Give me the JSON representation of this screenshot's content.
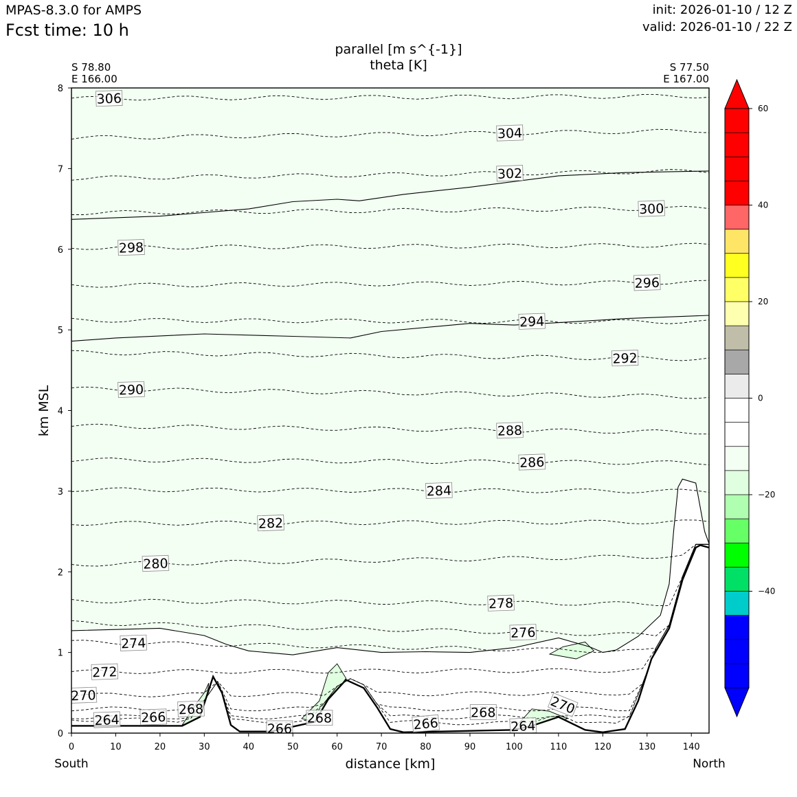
{
  "header": {
    "model": "MPAS-8.3.0 for AMPS",
    "forecast_time": "Fcst time:   10 h",
    "init": "init: 2026-01-10 / 12 Z",
    "valid": "valid: 2026-01-10 / 22 Z"
  },
  "chart_data": {
    "type": "cross-section contour",
    "title_lines": [
      "parallel [m s^{-1}]",
      "theta [K]"
    ],
    "xlabel": "distance [km]",
    "ylabel": "km MSL",
    "xlim": [
      0,
      144
    ],
    "ylim": [
      0,
      8
    ],
    "x_ticks": [
      0,
      10,
      20,
      30,
      40,
      50,
      60,
      70,
      80,
      90,
      100,
      110,
      120,
      130,
      140
    ],
    "y_ticks": [
      0,
      1,
      2,
      3,
      4,
      5,
      6,
      7,
      8
    ],
    "start_point": {
      "lat": "S 78.80",
      "lon": "E 166.00",
      "label": "South"
    },
    "end_point": {
      "lat": "S 77.50",
      "lon": "E 167.00",
      "label": "North"
    },
    "colorbar": {
      "levels": [
        -60,
        -55,
        -50,
        -45,
        -40,
        -35,
        -30,
        -25,
        -20,
        -15,
        -10,
        -5,
        0,
        5,
        10,
        15,
        20,
        25,
        30,
        35,
        40,
        45,
        50,
        55,
        60
      ],
      "colors": [
        "#0000ff",
        "#0000ff",
        "#0000ff",
        "#00cccc",
        "#00e066",
        "#00ff00",
        "#66ff66",
        "#b0ffb0",
        "#e0ffe0",
        "#f3fff3",
        "#ffffff",
        "#ffffff",
        "#ebebeb",
        "#a8a8a8",
        "#c0bea8",
        "#ffffb0",
        "#ffff66",
        "#ffff20",
        "#ffe566",
        "#ff6666",
        "#ff0000",
        "#ff0000"
      ],
      "extend_low_color": "#0000ff",
      "extend_high_color": "#ff0000",
      "tick_labels": [
        "60",
        "40",
        "20",
        "0",
        "−20",
        "−40"
      ],
      "tick_values": [
        60,
        40,
        20,
        0,
        -20,
        -40
      ]
    },
    "wind_bands": [
      {
        "name": "-15 to -10",
        "color": "#b0ffb0",
        "lower_boundary": [
          [
            0,
            6.37
          ],
          [
            20,
            6.41
          ],
          [
            40,
            6.5
          ],
          [
            50,
            6.59
          ],
          [
            60,
            6.62
          ],
          [
            65,
            6.6
          ],
          [
            75,
            6.68
          ],
          [
            90,
            6.77
          ],
          [
            110,
            6.91
          ],
          [
            125,
            6.95
          ],
          [
            144,
            6.97
          ]
        ]
      },
      {
        "name": "-10 to -5",
        "color": "#e0ffe0",
        "lower_boundary": [
          [
            0,
            4.86
          ],
          [
            10,
            4.9
          ],
          [
            30,
            4.95
          ],
          [
            50,
            4.92
          ],
          [
            63,
            4.9
          ],
          [
            70,
            4.98
          ],
          [
            90,
            5.08
          ],
          [
            100,
            5.06
          ],
          [
            110,
            5.09
          ],
          [
            125,
            5.14
          ],
          [
            144,
            5.18
          ]
        ]
      },
      {
        "name": "-5 to 0",
        "color": "#f3fff3",
        "lower_boundary": [
          [
            0,
            1.27
          ],
          [
            20,
            1.3
          ],
          [
            30,
            1.21
          ],
          [
            35,
            1.1
          ],
          [
            40,
            1.02
          ],
          [
            50,
            0.97
          ],
          [
            60,
            1.06
          ],
          [
            70,
            1.0
          ],
          [
            80,
            1.01
          ],
          [
            90,
            1.0
          ],
          [
            100,
            1.06
          ],
          [
            110,
            1.18
          ],
          [
            117,
            1.07
          ],
          [
            120,
            1.0
          ],
          [
            123,
            1.03
          ],
          [
            128,
            1.2
          ],
          [
            133,
            1.46
          ],
          [
            135,
            1.85
          ],
          [
            136,
            2.5
          ],
          [
            137,
            3.05
          ],
          [
            138,
            3.15
          ],
          [
            141,
            3.1
          ],
          [
            143,
            2.5
          ],
          [
            144,
            2.35
          ]
        ]
      }
    ],
    "terrain": [
      [
        0,
        0.09
      ],
      [
        25,
        0.09
      ],
      [
        29,
        0.2
      ],
      [
        32,
        0.7
      ],
      [
        34,
        0.5
      ],
      [
        36,
        0.1
      ],
      [
        38,
        0.02
      ],
      [
        45,
        0.02
      ],
      [
        55,
        0.14
      ],
      [
        58,
        0.42
      ],
      [
        62,
        0.66
      ],
      [
        66,
        0.56
      ],
      [
        69,
        0.32
      ],
      [
        72,
        0.05
      ],
      [
        75,
        0.01
      ],
      [
        100,
        0.04
      ],
      [
        104,
        0.09
      ],
      [
        110,
        0.2
      ],
      [
        116,
        0.04
      ],
      [
        120,
        0.01
      ],
      [
        125,
        0.05
      ],
      [
        128,
        0.4
      ],
      [
        131,
        0.92
      ],
      [
        135,
        1.3
      ],
      [
        138,
        1.9
      ],
      [
        141,
        2.3
      ],
      [
        142,
        2.33
      ],
      [
        144,
        2.3
      ]
    ],
    "theta_contours": [
      {
        "level": 306,
        "y0": 7.87,
        "y1": 7.9,
        "label_x": 8.5
      },
      {
        "level": 304,
        "y0": 7.38,
        "y1": 7.47,
        "label_x": 99
      },
      {
        "level": 302,
        "y0": 6.88,
        "y1": 6.97,
        "label_x": 99
      },
      {
        "level": 300,
        "y0": 6.45,
        "y1": 6.51,
        "label_x": 131
      },
      {
        "level": 298,
        "y0": 6.02,
        "y1": 6.05,
        "label_x": 13.5
      },
      {
        "level": 296,
        "y0": 5.55,
        "y1": 5.59,
        "label_x": 130
      },
      {
        "level": 294,
        "y0": 5.12,
        "y1": 5.1,
        "label_x": 104
      },
      {
        "level": 292,
        "y0": 4.72,
        "y1": 4.64,
        "label_x": 125
      },
      {
        "level": 290,
        "y0": 4.27,
        "y1": 4.17,
        "label_x": 13.5
      },
      {
        "level": 288,
        "y0": 3.81,
        "y1": 3.73,
        "label_x": 99
      },
      {
        "level": 286,
        "y0": 3.39,
        "y1": 3.35,
        "label_x": 104
      },
      {
        "level": 284,
        "y0": 3.02,
        "y1": 3.0,
        "label_x": 83
      },
      {
        "level": 282,
        "y0": 2.6,
        "y1": 2.62,
        "label_x": 45
      },
      {
        "level": 280,
        "y0": 2.09,
        "y1": 2.2,
        "label_x": 19
      },
      {
        "level": 278,
        "y0": 1.64,
        "y1": 1.6,
        "label_x": 97
      },
      {
        "level": 276,
        "y0": 1.37,
        "y1": 1.2,
        "label_x": 102
      },
      {
        "level": 274,
        "y0": 1.13,
        "y1": 1.0,
        "label_x": 14
      },
      {
        "level": 272,
        "y0": 0.76,
        "y1": 0.78,
        "label_x": 7.5
      },
      {
        "level": 270,
        "y0": 0.47,
        "y1": 0.5,
        "label_x": 2.7
      },
      {
        "level": 268,
        "y0": 0.3,
        "y1": 0.3,
        "label_x": 27
      },
      {
        "level": 266,
        "y0": 0.2,
        "y1": 0.2,
        "label_x": 18.5
      },
      {
        "level": 264,
        "y0": 0.17,
        "y1": 0.1,
        "label_x": 8
      }
    ],
    "extra_labels": [
      {
        "text": "266",
        "x": 47,
        "y": 0.06,
        "rot": 0
      },
      {
        "text": "268",
        "x": 56,
        "y": 0.19,
        "rot": 0
      },
      {
        "text": "266",
        "x": 80,
        "y": 0.12,
        "rot": -5
      },
      {
        "text": "268",
        "x": 93,
        "y": 0.26,
        "rot": 0
      },
      {
        "text": "264",
        "x": 102,
        "y": 0.09,
        "rot": -3
      },
      {
        "text": "270",
        "x": 111,
        "y": 0.35,
        "rot": 22
      }
    ]
  }
}
